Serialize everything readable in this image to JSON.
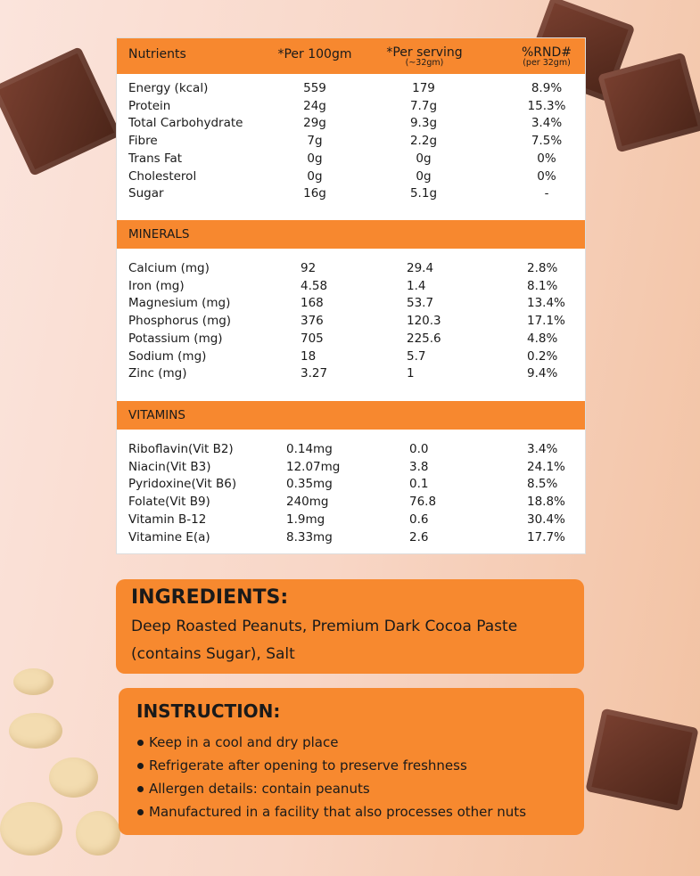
{
  "table": {
    "header": {
      "columns": [
        "Nutrients",
        "*Per 100gm",
        "*Per serving",
        "%RND#"
      ],
      "notes": [
        "(~32gm)",
        "(per 32gm)"
      ]
    },
    "sections": [
      {
        "rows": [
          [
            "Energy (kcal)",
            "559",
            "179",
            "8.9%"
          ],
          [
            "Protein",
            "24g",
            "7.7g",
            "15.3%"
          ],
          [
            "Total Carbohydrate",
            "29g",
            "9.3g",
            "3.4%"
          ],
          [
            "Fibre",
            "7g",
            "2.2g",
            "7.5%"
          ],
          [
            "Trans Fat",
            "0g",
            "0g",
            "0%"
          ],
          [
            "Cholesterol",
            "0g",
            "0g",
            "0%"
          ],
          [
            "Sugar",
            "16g",
            "5.1g",
            "-"
          ]
        ]
      },
      {
        "title": "MINERALS",
        "rows": [
          [
            "Calcium (mg)",
            "92",
            "29.4",
            "2.8%"
          ],
          [
            "Iron (mg)",
            "4.58",
            "1.4",
            "8.1%"
          ],
          [
            "Magnesium (mg)",
            "168",
            "53.7",
            "13.4%"
          ],
          [
            "Phosphorus (mg)",
            "376",
            "120.3",
            "17.1%"
          ],
          [
            "Potassium (mg)",
            "705",
            "225.6",
            "4.8%"
          ],
          [
            "Sodium (mg)",
            "18",
            "5.7",
            "0.2%"
          ],
          [
            "Zinc (mg)",
            "3.27",
            "1",
            "9.4%"
          ]
        ]
      },
      {
        "title": "VITAMINS",
        "rows": [
          [
            "Riboflavin(Vit B2)",
            "0.14mg",
            "0.0",
            "3.4%"
          ],
          [
            "Niacin(Vit B3)",
            "12.07mg",
            "3.8",
            "24.1%"
          ],
          [
            "Pyridoxine(Vit B6)",
            "0.35mg",
            "0.1",
            "8.5%"
          ],
          [
            "Folate(Vit B9)",
            "240mg",
            "76.8",
            "18.8%"
          ],
          [
            "Vitamin B-12",
            "1.9mg",
            "0.6",
            "30.4%"
          ],
          [
            "Vitamine E(a)",
            "8.33mg",
            "2.6",
            "17.7%"
          ]
        ]
      }
    ]
  },
  "ingredients": {
    "title": "INGREDIENTS:",
    "text": "Deep Roasted Peanuts, Premium Dark Cocoa Paste (contains Sugar), Salt"
  },
  "instruction": {
    "title": "INSTRUCTION:",
    "items": [
      "Keep in a cool and dry place",
      "Refrigerate after opening to preserve freshness",
      "Allergen details: contain peanuts",
      "Manufactured in a facility that also processes other nuts"
    ]
  }
}
